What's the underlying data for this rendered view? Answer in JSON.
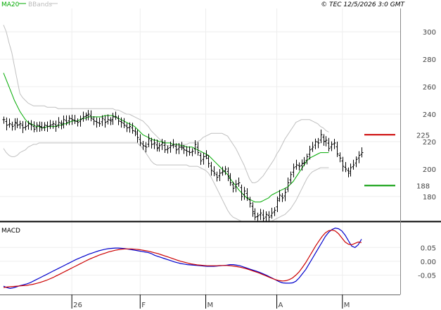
{
  "header": {
    "legend_ma20": "MA20",
    "legend_bbands": "BBands",
    "copyright": "© TEC 12/5/2026 3:0 GMT"
  },
  "macd_label": "MACD",
  "colors": {
    "price": "#000000",
    "ma20": "#00aa00",
    "bbands": "#c0c0c0",
    "resistance": "#cc0000",
    "support": "#009900",
    "macd": "#0000cc",
    "signal": "#cc0000",
    "grid": "#eeeeee"
  },
  "chart_data": [
    {
      "type": "ohlc",
      "ylim": [
        162,
        317
      ],
      "y_ticks": [
        180,
        200,
        220,
        240,
        260,
        280,
        300
      ],
      "x_ticks": [
        {
          "label": "26",
          "index": 25
        },
        {
          "label": "F",
          "index": 50
        },
        {
          "label": "M",
          "index": 74
        },
        {
          "label": "A",
          "index": 100
        },
        {
          "label": "M",
          "index": 124
        }
      ],
      "closes": [
        236,
        232,
        233,
        231,
        234,
        232,
        233,
        230,
        231,
        233,
        232,
        229,
        232,
        231,
        230,
        232,
        231,
        232,
        233,
        231,
        234,
        232,
        236,
        234,
        237,
        236,
        235,
        234,
        236,
        238,
        239,
        240,
        237,
        235,
        234,
        233,
        237,
        234,
        236,
        235,
        238,
        238,
        235,
        234,
        232,
        230,
        231,
        228,
        227,
        223,
        219,
        217,
        216,
        222,
        218,
        219,
        215,
        217,
        219,
        214,
        215,
        217,
        218,
        214,
        216,
        216,
        214,
        213,
        212,
        213,
        218,
        212,
        206,
        209,
        210,
        204,
        199,
        197,
        194,
        197,
        198,
        200,
        195,
        190,
        186,
        189,
        190,
        180,
        184,
        179,
        175,
        169,
        165,
        166,
        168,
        164,
        167,
        165,
        168,
        170,
        177,
        181,
        179,
        183,
        190,
        196,
        201,
        203,
        202,
        204,
        205,
        209,
        214,
        216,
        220,
        219,
        225,
        220,
        221,
        215,
        218,
        219,
        211,
        208,
        202,
        200,
        197,
        201,
        203,
        207,
        210,
        212
      ],
      "ma20": [
        270,
        265,
        260,
        255,
        250,
        246,
        242,
        239,
        236,
        234,
        233,
        232,
        231,
        231,
        230,
        230,
        231,
        231,
        231,
        231,
        232,
        232,
        233,
        233,
        234,
        235,
        235,
        235,
        236,
        237,
        237,
        238,
        238,
        238,
        238,
        238,
        238,
        239,
        239,
        239,
        239,
        238,
        237,
        236,
        235,
        234,
        233,
        232,
        231,
        229,
        227,
        225,
        224,
        223,
        222,
        221,
        221,
        220,
        220,
        219,
        219,
        219,
        218,
        218,
        218,
        217,
        217,
        216,
        216,
        216,
        215,
        214,
        213,
        212,
        211,
        210,
        208,
        206,
        204,
        202,
        200,
        198,
        196,
        193,
        190,
        188,
        185,
        183,
        181,
        179,
        178,
        177,
        176,
        176,
        176,
        177,
        178,
        179,
        181,
        182,
        183,
        184,
        185,
        186,
        187,
        189,
        191,
        194,
        197,
        200,
        203,
        206,
        208,
        209,
        210,
        211,
        212,
        212,
        212,
        212
      ],
      "bb_upper": [
        305,
        300,
        292,
        285,
        275,
        265,
        255,
        252,
        250,
        248,
        247,
        246,
        246,
        246,
        246,
        246,
        245,
        245,
        245,
        245,
        244,
        244,
        244,
        244,
        244,
        244,
        244,
        244,
        244,
        244,
        244,
        244,
        244,
        244,
        244,
        244,
        244,
        244,
        244,
        244,
        244,
        243,
        243,
        242,
        241,
        240,
        240,
        239,
        238,
        237,
        236,
        235,
        233,
        231,
        228,
        226,
        224,
        222,
        220,
        218,
        217,
        217,
        217,
        217,
        217,
        218,
        218,
        218,
        219,
        219,
        219,
        220,
        221,
        223,
        224,
        225,
        226,
        226,
        226,
        226,
        226,
        225,
        224,
        221,
        218,
        215,
        211,
        207,
        203,
        198,
        193,
        190,
        190,
        191,
        193,
        195,
        198,
        201,
        204,
        207,
        211,
        214,
        218,
        222,
        225,
        228,
        231,
        234,
        235,
        236,
        236,
        236,
        236,
        235,
        234,
        233,
        231,
        230,
        228,
        227
      ],
      "bb_lower": [
        215,
        212,
        210,
        209,
        209,
        210,
        212,
        213,
        214,
        216,
        217,
        218,
        218,
        219,
        219,
        219,
        219,
        219,
        219,
        219,
        219,
        219,
        219,
        219,
        219,
        219,
        219,
        219,
        219,
        219,
        219,
        219,
        219,
        219,
        219,
        219,
        219,
        219,
        219,
        219,
        219,
        219,
        219,
        219,
        219,
        219,
        219,
        219,
        219,
        219,
        217,
        215,
        212,
        209,
        206,
        204,
        203,
        203,
        203,
        203,
        203,
        203,
        203,
        203,
        203,
        203,
        203,
        203,
        202,
        202,
        202,
        202,
        201,
        200,
        199,
        197,
        194,
        190,
        186,
        182,
        178,
        174,
        170,
        167,
        165,
        164,
        163,
        162,
        162,
        162,
        162,
        162,
        162,
        162,
        162,
        162,
        162,
        162,
        162,
        163,
        164,
        165,
        166,
        167,
        169,
        171,
        174,
        177,
        181,
        185,
        189,
        193,
        196,
        198,
        199,
        200,
        201,
        201,
        201,
        201
      ],
      "annotations": [
        {
          "label": "225",
          "value": 225,
          "kind": "resistance"
        },
        {
          "label": "188",
          "value": 188,
          "kind": "support"
        }
      ]
    },
    {
      "type": "line",
      "title": "MACD",
      "ylim": [
        -0.12,
        0.14
      ],
      "y_ticks": [
        {
          "label": "0.05",
          "value": 0.05
        },
        {
          "label": "0.00",
          "value": 0.0
        },
        {
          "label": "-0.05",
          "value": -0.05
        }
      ],
      "series": [
        {
          "values": [
            -0.09,
            -0.095,
            -0.098,
            -0.096,
            -0.092,
            -0.088,
            -0.085,
            -0.082,
            -0.078,
            -0.072,
            -0.066,
            -0.06,
            -0.054,
            -0.048,
            -0.042,
            -0.036,
            -0.03,
            -0.024,
            -0.018,
            -0.012,
            -0.006,
            0.0,
            0.006,
            0.011,
            0.016,
            0.021,
            0.026,
            0.03,
            0.034,
            0.038,
            0.041,
            0.044,
            0.046,
            0.047,
            0.048,
            0.048,
            0.047,
            0.046,
            0.044,
            0.042,
            0.04,
            0.038,
            0.036,
            0.034,
            0.032,
            0.028,
            0.022,
            0.018,
            0.014,
            0.01,
            0.006,
            0.002,
            -0.002,
            -0.005,
            -0.008,
            -0.01,
            -0.012,
            -0.013,
            -0.014,
            -0.015,
            -0.016,
            -0.017,
            -0.018,
            -0.018,
            -0.018,
            -0.017,
            -0.016,
            -0.015,
            -0.014,
            -0.012,
            -0.012,
            -0.014,
            -0.016,
            -0.02,
            -0.024,
            -0.028,
            -0.032,
            -0.036,
            -0.04,
            -0.045,
            -0.05,
            -0.056,
            -0.062,
            -0.068,
            -0.074,
            -0.078,
            -0.079,
            -0.079,
            -0.078,
            -0.072,
            -0.06,
            -0.045,
            -0.03,
            -0.01,
            0.01,
            0.03,
            0.05,
            0.07,
            0.09,
            0.105,
            0.115,
            0.12,
            0.118,
            0.11,
            0.095,
            0.075,
            0.055,
            0.05,
            0.06,
            0.08
          ]
        },
        {
          "values": [
            -0.095,
            -0.093,
            -0.092,
            -0.091,
            -0.09,
            -0.089,
            -0.088,
            -0.087,
            -0.085,
            -0.083,
            -0.08,
            -0.077,
            -0.073,
            -0.069,
            -0.064,
            -0.059,
            -0.053,
            -0.047,
            -0.041,
            -0.035,
            -0.029,
            -0.023,
            -0.017,
            -0.011,
            -0.005,
            0.001,
            0.007,
            0.012,
            0.017,
            0.022,
            0.026,
            0.03,
            0.034,
            0.037,
            0.04,
            0.042,
            0.044,
            0.045,
            0.045,
            0.045,
            0.044,
            0.043,
            0.041,
            0.039,
            0.037,
            0.034,
            0.031,
            0.028,
            0.024,
            0.02,
            0.016,
            0.012,
            0.008,
            0.004,
            0.0,
            -0.003,
            -0.006,
            -0.009,
            -0.011,
            -0.013,
            -0.014,
            -0.015,
            -0.016,
            -0.016,
            -0.016,
            -0.016,
            -0.015,
            -0.015,
            -0.015,
            -0.016,
            -0.017,
            -0.019,
            -0.021,
            -0.024,
            -0.027,
            -0.031,
            -0.035,
            -0.039,
            -0.043,
            -0.048,
            -0.053,
            -0.058,
            -0.063,
            -0.067,
            -0.07,
            -0.071,
            -0.07,
            -0.066,
            -0.06,
            -0.05,
            -0.038,
            -0.022,
            -0.005,
            0.015,
            0.035,
            0.055,
            0.073,
            0.09,
            0.103,
            0.111,
            0.113,
            0.11,
            0.1,
            0.085,
            0.07,
            0.062,
            0.06,
            0.065,
            0.07,
            0.068
          ]
        }
      ]
    }
  ]
}
